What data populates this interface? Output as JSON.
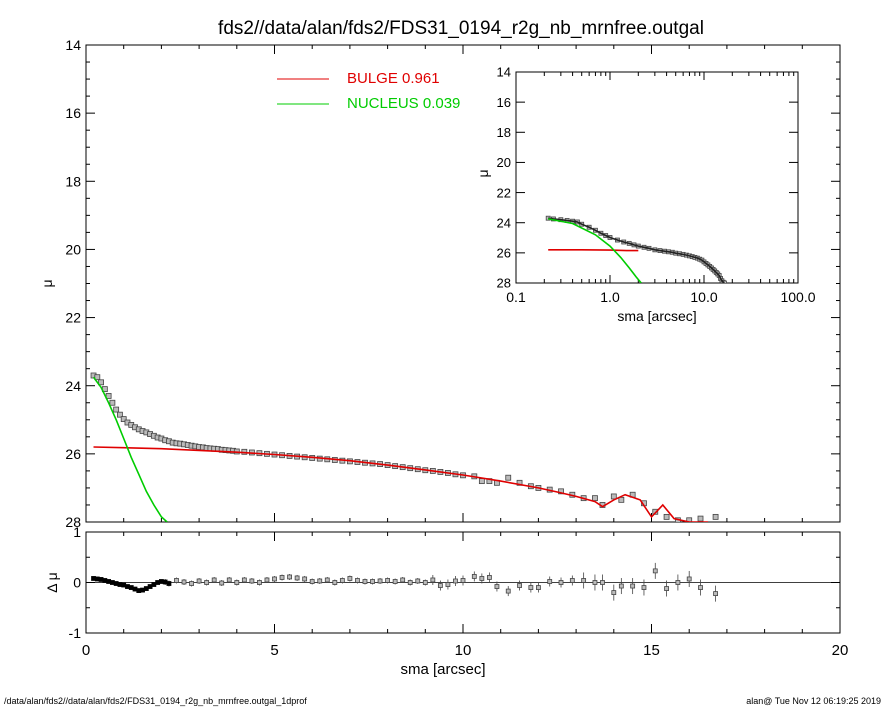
{
  "title": "fds2//data/alan/fds2/FDS31_0194_r2g_nb_mrnfree.outgal",
  "footer_left": "/data/alan/fds2//data/alan/fds2/FDS31_0194_r2g_nb_mrnfree.outgal_1dprof",
  "footer_right": "alan@  Tue Nov 12 06:19:25 2019",
  "colors": {
    "data": "#444444",
    "bulge": "#e00000",
    "nucleus": "#00cc00",
    "axis": "#000000"
  },
  "chart_data": [
    {
      "id": "main",
      "type": "line",
      "ylabel": "μ",
      "xlim": [
        0,
        20
      ],
      "ylim": [
        28,
        14
      ],
      "y_inverted": true,
      "yticks": [
        "14",
        "16",
        "18",
        "20",
        "22",
        "24",
        "26",
        "28"
      ],
      "legend_position": "top-left",
      "legend": [
        {
          "label": "BULGE",
          "value": "0.961",
          "color": "#e00000"
        },
        {
          "label": "NUCLEUS",
          "value": "0.039",
          "color": "#00cc00"
        }
      ],
      "series": [
        {
          "name": "BULGE",
          "color": "#e00000",
          "x": [
            0.2,
            1,
            2,
            3,
            4,
            5,
            6,
            7,
            8,
            9,
            10,
            11,
            12,
            12.5,
            13,
            13.5,
            13.7,
            14,
            14.3,
            14.7,
            15,
            15.3,
            15.6,
            16,
            16.5
          ],
          "y": [
            25.8,
            25.82,
            25.85,
            25.9,
            25.95,
            26.02,
            26.1,
            26.2,
            26.33,
            26.47,
            26.62,
            26.8,
            27.0,
            27.12,
            27.25,
            27.4,
            27.55,
            27.35,
            27.2,
            27.35,
            27.85,
            27.5,
            27.9,
            28.0,
            28.0
          ]
        },
        {
          "name": "NUCLEUS",
          "color": "#00cc00",
          "x": [
            0.2,
            0.4,
            0.6,
            0.8,
            1.0,
            1.2,
            1.4,
            1.6,
            1.8,
            2.0,
            2.15
          ],
          "y": [
            23.75,
            24.05,
            24.5,
            25.0,
            25.55,
            26.1,
            26.6,
            27.1,
            27.5,
            27.85,
            28.0
          ]
        },
        {
          "name": "data",
          "style": "markers",
          "x": [
            0.2,
            0.3,
            0.4,
            0.5,
            0.6,
            0.7,
            0.8,
            0.9,
            1.0,
            1.1,
            1.2,
            1.3,
            1.4,
            1.5,
            1.6,
            1.7,
            1.8,
            1.9,
            2.0,
            2.1,
            2.2,
            2.3,
            2.4,
            2.5,
            2.6,
            2.7,
            2.8,
            2.9,
            3.0,
            3.1,
            3.2,
            3.3,
            3.4,
            3.5,
            3.6,
            3.7,
            3.8,
            3.9,
            4.0,
            4.2,
            4.4,
            4.6,
            4.8,
            5.0,
            5.2,
            5.4,
            5.6,
            5.8,
            6.0,
            6.2,
            6.4,
            6.6,
            6.8,
            7.0,
            7.2,
            7.4,
            7.6,
            7.8,
            8.0,
            8.2,
            8.4,
            8.6,
            8.8,
            9.0,
            9.2,
            9.4,
            9.6,
            9.8,
            10.0,
            10.3,
            10.5,
            10.7,
            10.9,
            11.2,
            11.5,
            11.8,
            12.0,
            12.3,
            12.6,
            12.9,
            13.2,
            13.5,
            13.7,
            14.0,
            14.2,
            14.5,
            14.8,
            15.1,
            15.4,
            15.7,
            16.0,
            16.3,
            16.7
          ],
          "y": [
            23.7,
            23.75,
            23.9,
            24.1,
            24.3,
            24.5,
            24.7,
            24.85,
            24.98,
            25.08,
            25.15,
            25.22,
            25.28,
            25.33,
            25.37,
            25.42,
            25.47,
            25.52,
            25.55,
            25.6,
            25.63,
            25.67,
            25.69,
            25.7,
            25.72,
            25.74,
            25.76,
            25.78,
            25.8,
            25.81,
            25.83,
            25.84,
            25.85,
            25.86,
            25.88,
            25.89,
            25.9,
            25.91,
            25.93,
            25.94,
            25.96,
            25.98,
            26.0,
            26.02,
            26.04,
            26.06,
            26.08,
            26.1,
            26.12,
            26.14,
            26.16,
            26.18,
            26.2,
            26.22,
            26.24,
            26.26,
            26.28,
            26.3,
            26.33,
            26.36,
            26.39,
            26.42,
            26.45,
            26.48,
            26.5,
            26.53,
            26.56,
            26.6,
            26.63,
            26.66,
            26.8,
            26.8,
            26.85,
            26.7,
            26.85,
            26.95,
            27.0,
            27.05,
            27.1,
            27.2,
            27.3,
            27.3,
            27.5,
            27.25,
            27.35,
            27.2,
            27.45,
            27.7,
            27.85,
            27.95,
            27.95,
            27.9,
            27.85
          ]
        }
      ]
    },
    {
      "id": "residual",
      "type": "scatter",
      "xlabel": "sma [arcsec]",
      "ylabel": "Δ μ",
      "xlim": [
        0,
        20
      ],
      "ylim": [
        -1,
        1
      ],
      "xticks": [
        "0",
        "5",
        "10",
        "15",
        "20"
      ],
      "yticks": [
        "-1",
        "0",
        "1"
      ],
      "zero_line": true,
      "series": [
        {
          "name": "residual",
          "style": "markers-errorbars",
          "x": [
            0.2,
            0.3,
            0.4,
            0.5,
            0.6,
            0.7,
            0.8,
            0.9,
            1.0,
            1.1,
            1.2,
            1.3,
            1.4,
            1.5,
            1.6,
            1.7,
            1.8,
            1.9,
            2.0,
            2.1,
            2.2,
            2.4,
            2.6,
            2.8,
            3.0,
            3.2,
            3.4,
            3.6,
            3.8,
            4.0,
            4.2,
            4.4,
            4.6,
            4.8,
            5.0,
            5.2,
            5.4,
            5.6,
            5.8,
            6.0,
            6.2,
            6.4,
            6.6,
            6.8,
            7.0,
            7.2,
            7.4,
            7.6,
            7.8,
            8.0,
            8.2,
            8.4,
            8.6,
            8.8,
            9.0,
            9.2,
            9.4,
            9.6,
            9.8,
            10.0,
            10.3,
            10.5,
            10.7,
            10.9,
            11.2,
            11.5,
            11.8,
            12.0,
            12.3,
            12.6,
            12.9,
            13.2,
            13.5,
            13.7,
            14.0,
            14.2,
            14.5,
            14.8,
            15.1,
            15.4,
            15.7,
            16.0,
            16.3,
            16.7
          ],
          "y": [
            0.08,
            0.07,
            0.06,
            0.04,
            0.02,
            0.0,
            -0.02,
            -0.04,
            -0.05,
            -0.08,
            -0.1,
            -0.13,
            -0.16,
            -0.15,
            -0.12,
            -0.08,
            -0.04,
            0.0,
            0.02,
            0.01,
            -0.02,
            0.04,
            0.01,
            -0.02,
            0.03,
            0.0,
            0.05,
            -0.01,
            0.05,
            0.0,
            0.05,
            0.03,
            0.0,
            0.05,
            0.07,
            0.1,
            0.11,
            0.09,
            0.07,
            0.02,
            0.03,
            0.05,
            0.0,
            0.04,
            0.08,
            0.04,
            0.02,
            0.02,
            0.03,
            0.04,
            0.02,
            0.05,
            0.0,
            0.03,
            0.0,
            0.05,
            -0.06,
            -0.04,
            0.03,
            0.04,
            0.12,
            0.08,
            0.1,
            -0.08,
            -0.17,
            -0.06,
            -0.1,
            -0.1,
            0.02,
            0.0,
            0.04,
            0.04,
            0.0,
            0.0,
            -0.2,
            -0.07,
            -0.07,
            -0.1,
            0.23,
            -0.12,
            0.0,
            0.07,
            -0.1,
            -0.22
          ]
        }
      ]
    },
    {
      "id": "inset",
      "type": "line",
      "xlabel": "sma [arcsec]",
      "ylabel": "μ",
      "x_scale": "log",
      "xlim": [
        0.1,
        100.0
      ],
      "ylim": [
        28,
        14
      ],
      "y_inverted": true,
      "xticks": [
        "0.1",
        "1.0",
        "10.0",
        "100.0"
      ],
      "yticks": [
        "14",
        "16",
        "18",
        "20",
        "22",
        "24",
        "26",
        "28"
      ],
      "series": [
        {
          "name": "BULGE",
          "color": "#e00000",
          "x": [
            0.22,
            0.5,
            1.0,
            1.5,
            2.0
          ],
          "y": [
            25.8,
            25.8,
            25.82,
            25.85,
            25.85
          ]
        },
        {
          "name": "NUCLEUS",
          "color": "#00cc00",
          "x": [
            0.22,
            0.4,
            0.7,
            1.0,
            1.3,
            1.6,
            1.9,
            2.15
          ],
          "y": [
            23.75,
            24.05,
            24.8,
            25.55,
            26.3,
            27.0,
            27.6,
            28.0
          ]
        },
        {
          "name": "data",
          "style": "markers",
          "x": [
            0.22,
            0.25,
            0.3,
            0.35,
            0.4,
            0.45,
            0.5,
            0.6,
            0.7,
            0.8,
            0.9,
            1.0,
            1.2,
            1.4,
            1.6,
            1.8,
            2.0,
            2.3,
            2.6,
            3.0,
            3.4,
            3.8,
            4.2,
            4.6,
            5.0,
            5.5,
            6.0,
            6.5,
            7.0,
            7.5,
            8.0,
            8.5,
            9.0,
            9.5,
            10.0,
            10.5,
            11.0,
            11.5,
            12.0,
            12.5,
            13.0,
            13.5,
            14.0,
            14.5,
            15.0,
            15.5,
            16.0,
            16.5
          ],
          "y": [
            23.7,
            23.75,
            23.8,
            23.85,
            23.9,
            23.95,
            24.1,
            24.3,
            24.5,
            24.7,
            24.85,
            24.98,
            25.15,
            25.28,
            25.37,
            25.47,
            25.55,
            25.63,
            25.7,
            25.8,
            25.85,
            25.89,
            25.93,
            25.96,
            26.02,
            26.06,
            26.1,
            26.15,
            26.2,
            26.25,
            26.3,
            26.35,
            26.42,
            26.48,
            26.6,
            26.7,
            26.8,
            26.9,
            27.0,
            27.1,
            27.2,
            27.3,
            27.4,
            27.5,
            27.7,
            27.85,
            27.95,
            28.0
          ]
        }
      ]
    }
  ]
}
